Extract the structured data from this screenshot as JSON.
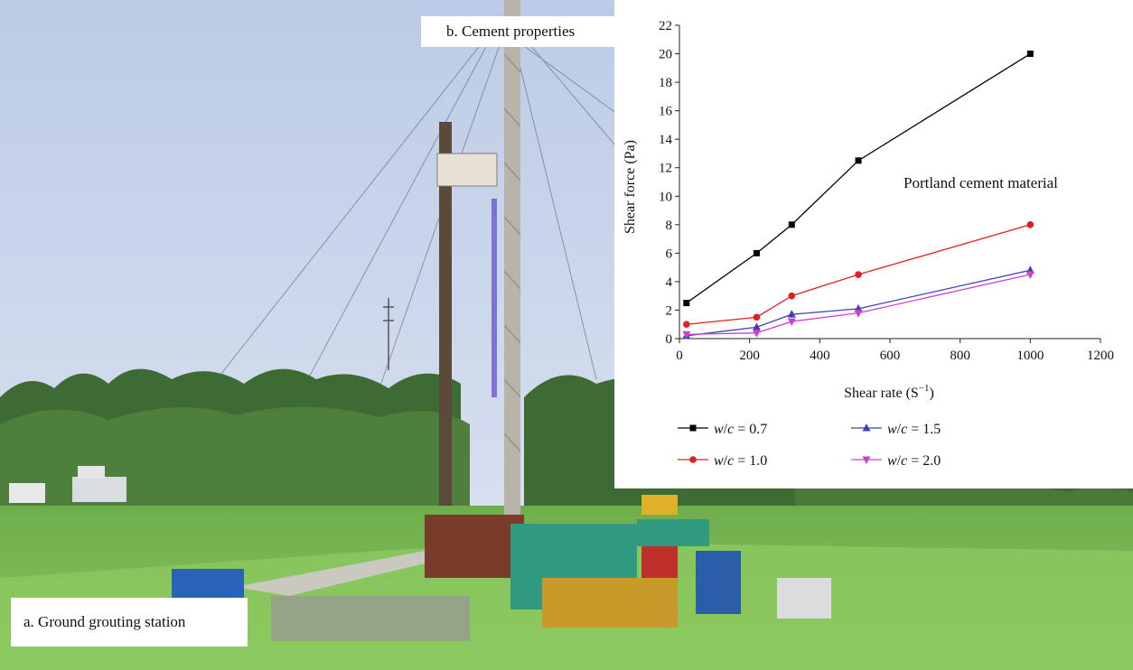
{
  "captions": {
    "a": "a. Ground grouting station",
    "b": "b. Cement properties"
  },
  "chart_data": {
    "type": "line",
    "title": "",
    "annotation": "Portland cement material",
    "xlabel": "Shear rate (S",
    "xlabel_sup": "−1",
    "xlabel_close": ")",
    "ylabel": "Shear force (Pa)",
    "xlim": [
      0,
      1200
    ],
    "ylim": [
      0,
      22
    ],
    "xticks": [
      0,
      200,
      400,
      600,
      800,
      1000,
      1200
    ],
    "yticks": [
      0,
      2,
      4,
      6,
      8,
      10,
      12,
      14,
      16,
      18,
      20,
      22
    ],
    "grid": false,
    "legend_position": "bottom",
    "x": [
      20,
      220,
      320,
      510,
      1000
    ],
    "series": [
      {
        "name_var1": "w",
        "name_var2": "c",
        "name_value": "= 0.7",
        "color": "#000000",
        "marker": "square",
        "values": [
          2.5,
          6.0,
          8.0,
          12.5,
          20.0
        ]
      },
      {
        "name_var1": "w",
        "name_var2": "c",
        "name_value": "= 1.0",
        "color": "#e02020",
        "marker": "circle",
        "values": [
          1.0,
          1.5,
          3.0,
          4.5,
          8.0
        ]
      },
      {
        "name_var1": "w",
        "name_var2": "c",
        "name_value": "= 1.5",
        "color": "#4040b8",
        "marker": "triangle-up",
        "values": [
          0.2,
          0.8,
          1.7,
          2.1,
          4.8
        ]
      },
      {
        "name_var1": "w",
        "name_var2": "c",
        "name_value": "= 2.0",
        "color": "#d040d0",
        "marker": "triangle-down",
        "values": [
          0.3,
          0.4,
          1.2,
          1.8,
          4.5
        ]
      }
    ]
  }
}
